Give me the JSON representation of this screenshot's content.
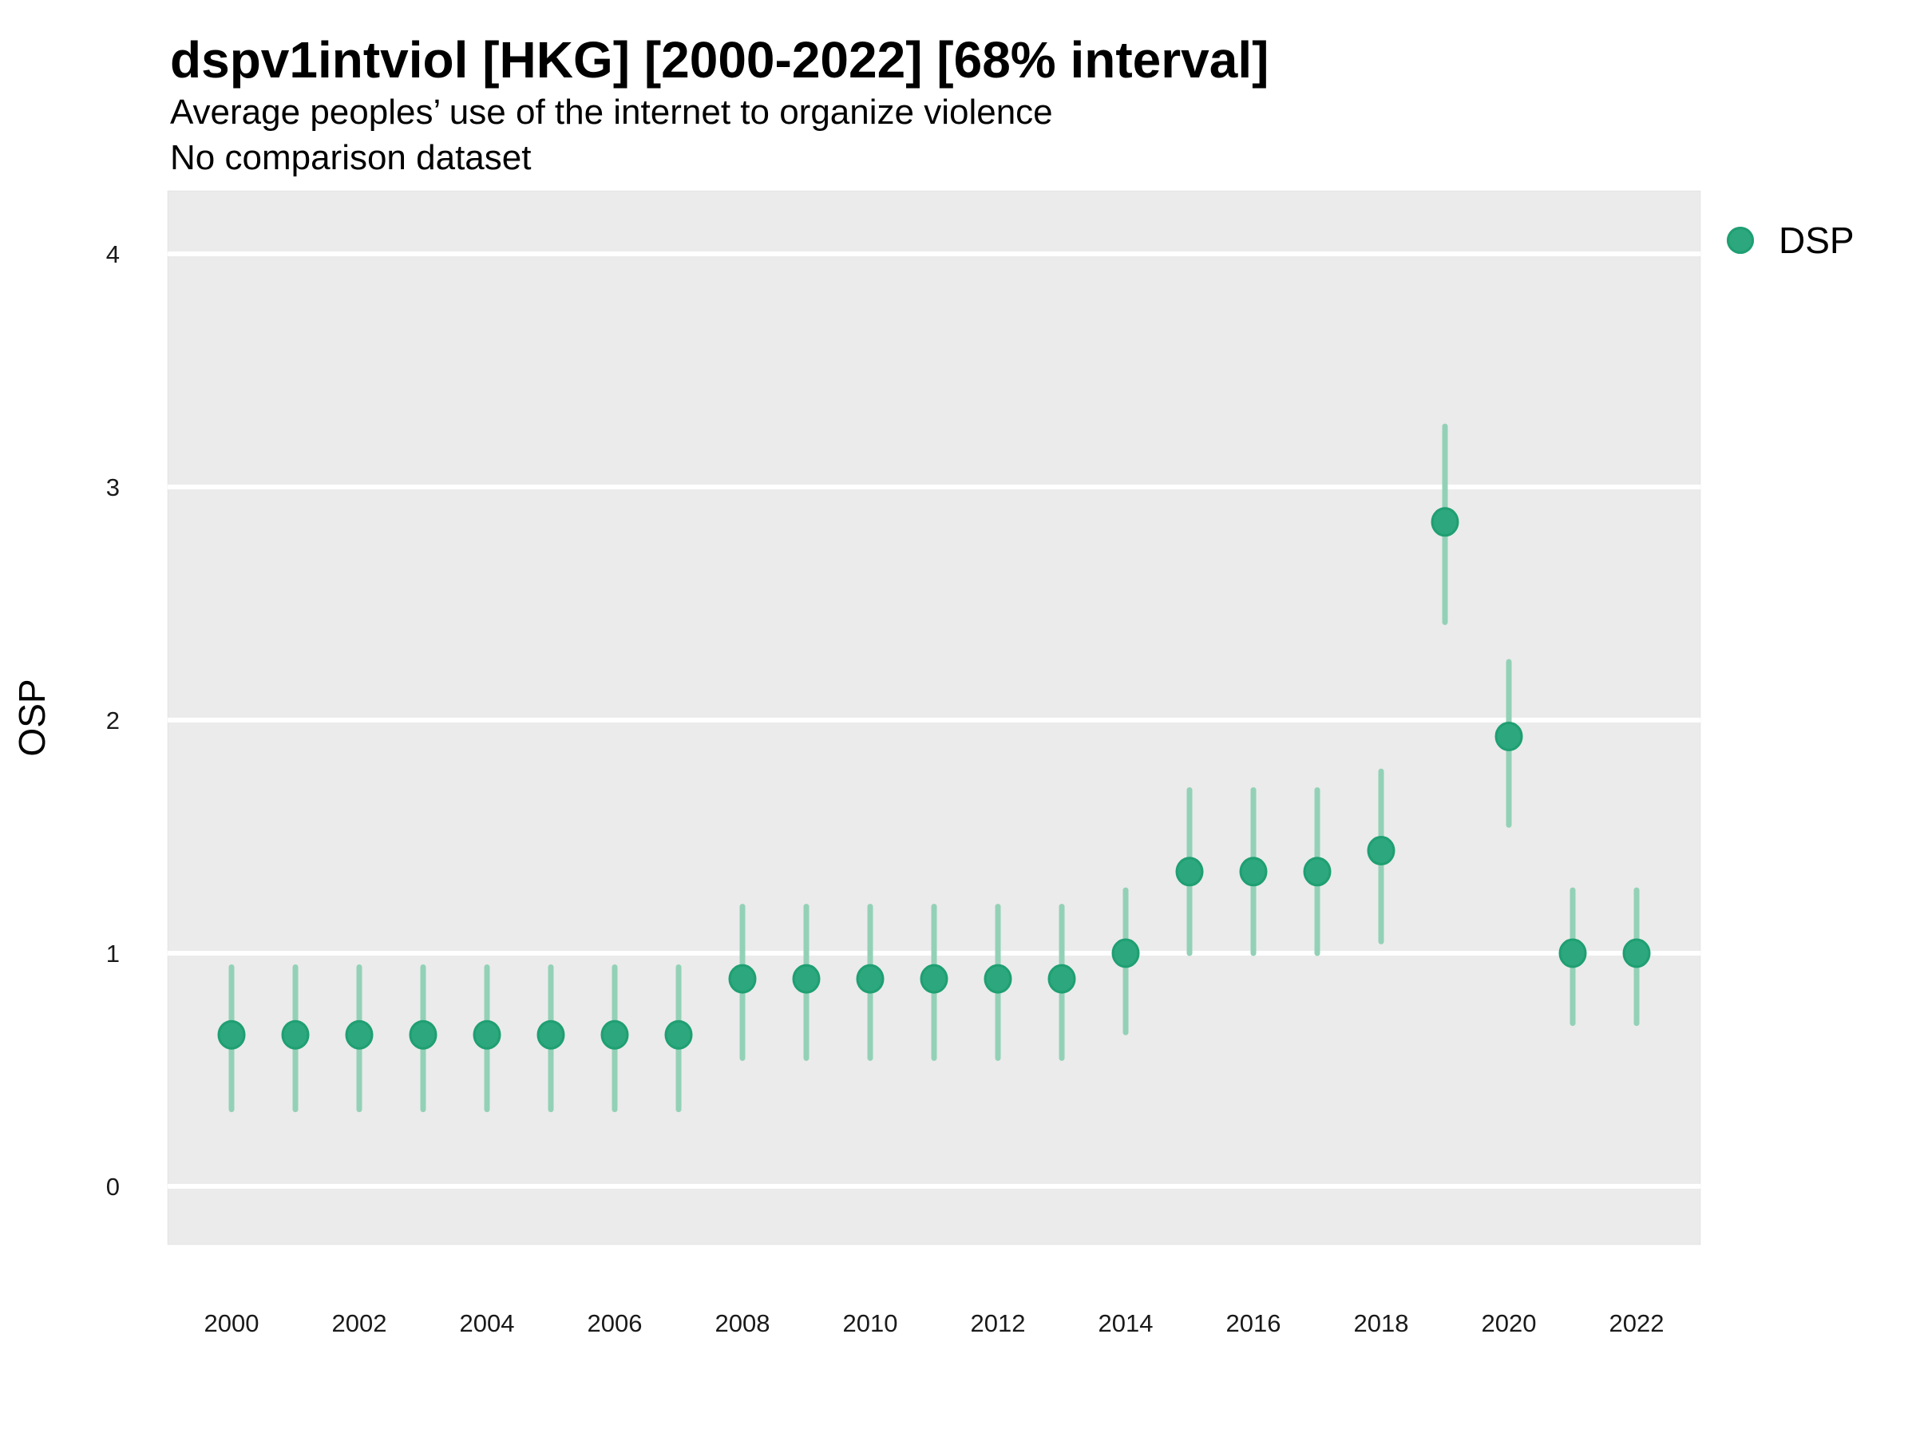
{
  "header": {
    "title": "dspv1intviol [HKG] [2000-2022] [68% interval]",
    "subtitle": "Average peoples’ use of the internet to organize violence",
    "dataset_note": "No comparison dataset"
  },
  "axes": {
    "y_label": "OSP",
    "x_label": "",
    "y_ticks": [
      0,
      1,
      2,
      3,
      4
    ],
    "x_ticks": [
      2000,
      2002,
      2004,
      2006,
      2008,
      2010,
      2012,
      2014,
      2016,
      2018,
      2020,
      2022
    ]
  },
  "legend": {
    "position": "right",
    "items": [
      {
        "label": "DSP",
        "marker": "circle"
      }
    ]
  },
  "colors": {
    "point_fill": "#2ca77e",
    "point_stroke": "#1f9f72",
    "interval_bar": "#93d1b7",
    "panel_background": "#ebebeb",
    "gridline": "#ffffff",
    "text": "#000000",
    "tick_text": "#1a1a1a"
  },
  "chart_data": {
    "type": "scatter",
    "subtype": "pointrange",
    "title": "dspv1intviol [HKG] [2000-2022] [68% interval]",
    "subtitle": "Average peoples’ use of the internet to organize violence",
    "note": "No comparison dataset",
    "xlabel": "",
    "ylabel": "OSP",
    "interval": "68%",
    "grid": "horizontal major gridlines, white on gray panel",
    "legend_position": "right",
    "xlim": [
      1999,
      2023
    ],
    "ylim": [
      -0.25,
      4.27
    ],
    "x": [
      2000,
      2001,
      2002,
      2003,
      2004,
      2005,
      2006,
      2007,
      2008,
      2009,
      2010,
      2011,
      2012,
      2013,
      2014,
      2015,
      2016,
      2017,
      2018,
      2019,
      2020,
      2021,
      2022
    ],
    "series": [
      {
        "name": "DSP",
        "values": [
          0.65,
          0.65,
          0.65,
          0.65,
          0.65,
          0.65,
          0.65,
          0.65,
          0.89,
          0.89,
          0.89,
          0.89,
          0.89,
          0.89,
          1.0,
          1.35,
          1.35,
          1.35,
          1.44,
          2.85,
          1.93,
          1.0,
          1.0
        ],
        "interval_low": [
          0.33,
          0.33,
          0.33,
          0.33,
          0.33,
          0.33,
          0.33,
          0.33,
          0.55,
          0.55,
          0.55,
          0.55,
          0.55,
          0.55,
          0.66,
          1.0,
          1.0,
          1.0,
          1.05,
          2.42,
          1.55,
          0.7,
          0.7
        ],
        "interval_high": [
          0.94,
          0.94,
          0.94,
          0.94,
          0.94,
          0.94,
          0.94,
          0.94,
          1.2,
          1.2,
          1.2,
          1.2,
          1.2,
          1.2,
          1.27,
          1.7,
          1.7,
          1.7,
          1.78,
          3.26,
          2.25,
          1.27,
          1.27
        ]
      }
    ]
  }
}
